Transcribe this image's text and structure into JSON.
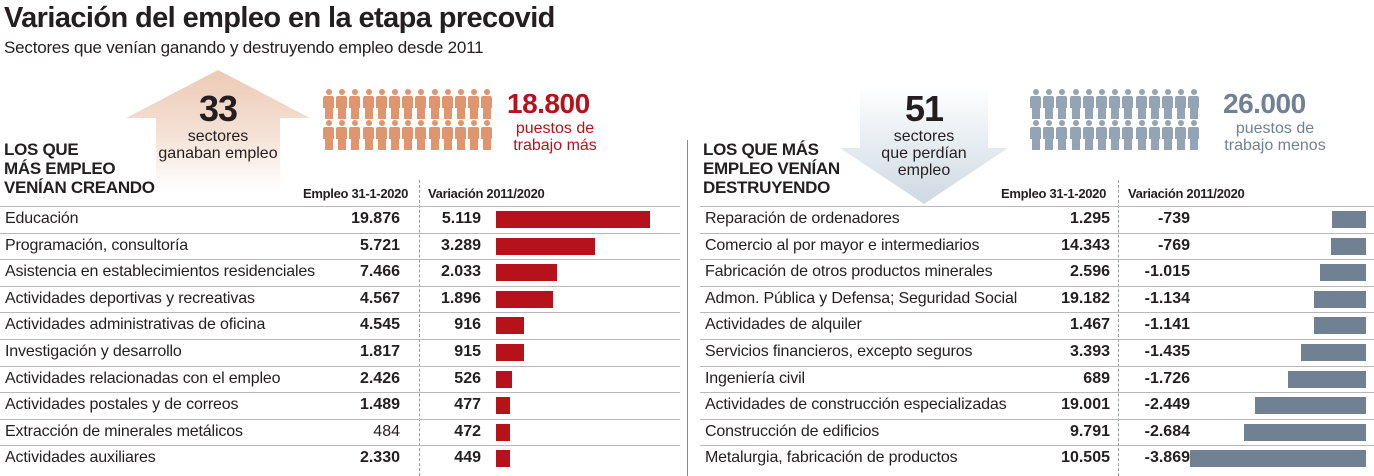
{
  "header": {
    "title": "Variación del empleo en la etapa precovid",
    "subtitle": "Sectores que venían ganando y destruyendo empleo desde 2011"
  },
  "colors": {
    "gain": "#b5121b",
    "gain_people": "#e0956e",
    "loss": "#6f8193",
    "loss_people": "#94a4b5",
    "gain_shape": "#f1d8c8",
    "loss_shape": "#d4dde6"
  },
  "left": {
    "summary": {
      "count": "33",
      "count_label_1": "sectores",
      "count_label_2": "ganaban empleo",
      "people_icons": 26,
      "jobs": "18.800",
      "jobs_label_1": "puestos de",
      "jobs_label_2": "trabajo más"
    },
    "section_title": [
      "LOS QUE",
      "MÁS EMPLEO",
      "VENÍAN CREANDO"
    ],
    "col_employment": "Empleo 31-1-2020",
    "col_variation": "Variación 2011/2020"
  },
  "right": {
    "summary": {
      "count": "51",
      "count_label_1": "sectores",
      "count_label_2": "que perdían",
      "count_label_3": "empleo",
      "people_icons": 26,
      "jobs": "26.000",
      "jobs_label_1": "puestos de",
      "jobs_label_2": "trabajo menos"
    },
    "section_title": [
      "LOS QUE MÁS",
      "EMPLEO VENÍAN",
      "DESTRUYENDO"
    ],
    "col_employment": "Empleo 31-1-2020",
    "col_variation": "Variación 2011/2020"
  },
  "chart_data": [
    {
      "type": "bar",
      "title": "Los que más empleo venían creando",
      "categories": [
        "Educación",
        "Programación, consultoría",
        "Asistencia en establecimientos residenciales",
        "Actividades deportivas y recreativas",
        "Actividades administrativas de oficina",
        "Investigación y desarrollo",
        "Actividades relacionadas con el empleo",
        "Actividades postales y de correos",
        "Extracción de minerales metálicos",
        "Actividades auxiliares"
      ],
      "employment_labels": [
        "19.876",
        "5.721",
        "7.466",
        "4.567",
        "4.545",
        "1.817",
        "2.426",
        "1.489",
        "484",
        "2.330"
      ],
      "employment": [
        19876,
        5721,
        7466,
        4567,
        4545,
        1817,
        2426,
        1489,
        484,
        2330
      ],
      "variation_labels": [
        "5.119",
        "3.289",
        "2.033",
        "1.896",
        "916",
        "915",
        "526",
        "477",
        "472",
        "449"
      ],
      "values": [
        5119,
        3289,
        2033,
        1896,
        916,
        915,
        526,
        477,
        472,
        449
      ],
      "xlabel": "Variación 2011/2020",
      "ylabel": "",
      "xlim": [
        0,
        5119
      ],
      "grid": false
    },
    {
      "type": "bar",
      "title": "Los que más empleo venían destruyendo",
      "categories": [
        "Reparación de ordenadores",
        "Comercio al por mayor e intermediarios",
        "Fabricación de otros productos minerales",
        "Admon. Pública y Defensa; Seguridad Social",
        "Actividades de alquiler",
        "Servicios financieros, excepto seguros",
        "Ingeniería civil",
        "Actividades de construcción especializadas",
        "Construcción de edificios",
        "Metalurgia, fabricación de productos"
      ],
      "employment_labels": [
        "1.295",
        "14.343",
        "2.596",
        "19.182",
        "1.467",
        "3.393",
        "689",
        "19.001",
        "9.791",
        "10.505"
      ],
      "employment": [
        1295,
        14343,
        2596,
        19182,
        1467,
        3393,
        689,
        19001,
        9791,
        10505
      ],
      "variation_labels": [
        "-739",
        "-769",
        "-1.015",
        "-1.134",
        "-1.141",
        "-1.435",
        "-1.726",
        "-2.449",
        "-2.684",
        "-3.869"
      ],
      "values": [
        -739,
        -769,
        -1015,
        -1134,
        -1141,
        -1435,
        -1726,
        -2449,
        -2684,
        -3869
      ],
      "xlabel": "Variación 2011/2020",
      "ylabel": "",
      "xlim": [
        -3869,
        0
      ],
      "grid": false
    }
  ]
}
